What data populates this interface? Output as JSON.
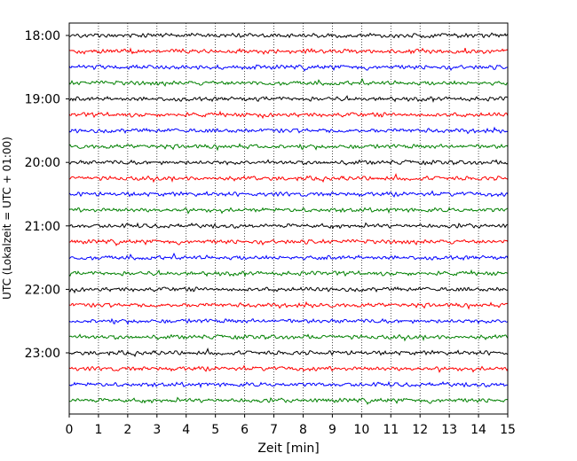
{
  "chart_data": {
    "type": "line",
    "subtype": "helicorder",
    "title": "",
    "xlabel": "Zeit  [min]",
    "ylabel": "UTC (Lokalzeit = UTC + 01:00)",
    "xlim": [
      0,
      15
    ],
    "x_ticks": [
      "0",
      "1",
      "2",
      "3",
      "4",
      "5",
      "6",
      "7",
      "8",
      "9",
      "10",
      "11",
      "12",
      "13",
      "14",
      "15"
    ],
    "x_grid": "dotted vertical lines at each minute",
    "y_tick_labels": [
      "18:00",
      "19:00",
      "20:00",
      "21:00",
      "22:00",
      "23:00"
    ],
    "trace_interval_minutes": 15,
    "trace_count": 24,
    "trace_start": "18:00",
    "trace_end": "23:45",
    "trace_colors": [
      "#000000",
      "#ff0000",
      "#0000ff",
      "#008000"
    ],
    "signal": "low-amplitude background noise, no events"
  }
}
